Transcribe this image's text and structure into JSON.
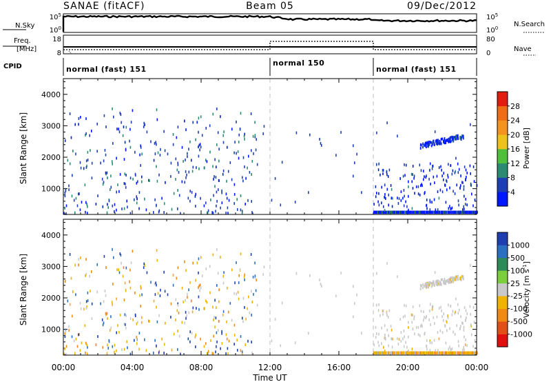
{
  "header": {
    "station": "SANAE (fitACF)",
    "beam": "Beam 05",
    "date": "09/Dec/2012"
  },
  "summary_panels": {
    "nsky": {
      "label": "N.Sky",
      "left_ticks": [
        "10^5",
        "10^0"
      ],
      "right_label": "N.Search",
      "right_ticks": [
        "10^5",
        "10^0"
      ]
    },
    "freq": {
      "label_line1": "Freq.",
      "label_line2": "[MHz]",
      "left_ticks": [
        "18",
        "8"
      ],
      "right_label": "Nave",
      "right_ticks": [
        "80",
        "0"
      ]
    },
    "cpid": {
      "label": "CPID",
      "segments": [
        {
          "name": "normal (fast) 151",
          "start_hour": 0,
          "end_hour": 12
        },
        {
          "name": "normal 150",
          "start_hour": 12,
          "end_hour": 18
        },
        {
          "name": "normal (fast) 151",
          "start_hour": 18,
          "end_hour": 24
        }
      ]
    }
  },
  "chart_data": [
    {
      "type": "heatmap",
      "title": "",
      "xlabel": "Time UT",
      "ylabel": "Slant Range [km]",
      "xlim": [
        0,
        24
      ],
      "ylim": [
        180,
        4500
      ],
      "x_ticks": [
        "00:00",
        "04:00",
        "08:00",
        "12:00",
        "16:00",
        "20:00",
        "00:00"
      ],
      "y_ticks": [
        1000,
        2000,
        3000,
        4000
      ],
      "colorbar": {
        "label": "Power [dB]",
        "ticks": [
          "4",
          "8",
          "12",
          "16",
          "20",
          "24",
          "28"
        ],
        "colors": [
          "#0018ff",
          "#1e3fb4",
          "#2b8a72",
          "#4fbf3c",
          "#eec21c",
          "#f39420",
          "#ef6d16",
          "#e11d0f"
        ]
      },
      "features": [
        {
          "name": "ground scatter band",
          "x_range": [
            18.0,
            24.0
          ],
          "y_range": [
            200,
            300
          ],
          "level": "low"
        },
        {
          "name": "ionospheric echoes",
          "x_range": [
            20.7,
            23.2
          ],
          "y_range": [
            2400,
            2700
          ],
          "level": "low"
        },
        {
          "name": "scattered noise",
          "x_range": [
            0.0,
            11.0
          ],
          "y_range": [
            200,
            3600
          ],
          "level": "low"
        }
      ]
    },
    {
      "type": "heatmap",
      "title": "",
      "xlabel": "Time UT",
      "ylabel": "Slant Range [km]",
      "xlim": [
        0,
        24
      ],
      "ylim": [
        180,
        4500
      ],
      "x_ticks": [
        "00:00",
        "04:00",
        "08:00",
        "12:00",
        "16:00",
        "20:00",
        "00:00"
      ],
      "y_ticks": [
        1000,
        2000,
        3000,
        4000
      ],
      "colorbar": {
        "label": "Velocity [m s^-1]",
        "ticks": [
          "1000",
          "500",
          "100",
          "25",
          "-25",
          "-100",
          "-500",
          "-1000"
        ],
        "colors": [
          "#1f3fb0",
          "#2a6fc0",
          "#2e8b57",
          "#7ccf3c",
          "#c9c9c9",
          "#f0b400",
          "#ef8a14",
          "#e2501a",
          "#e01010"
        ]
      },
      "features": [
        {
          "name": "ground scatter band",
          "x_range": [
            18.0,
            24.0
          ],
          "y_range": [
            200,
            300
          ],
          "level": "-100"
        },
        {
          "name": "ionospheric echoes",
          "x_range": [
            20.7,
            23.2
          ],
          "y_range": [
            2400,
            2700
          ],
          "level": "25"
        },
        {
          "name": "scattered noise",
          "x_range": [
            0.0,
            11.0
          ],
          "y_range": [
            200,
            3600
          ],
          "level": "-100"
        }
      ]
    }
  ]
}
